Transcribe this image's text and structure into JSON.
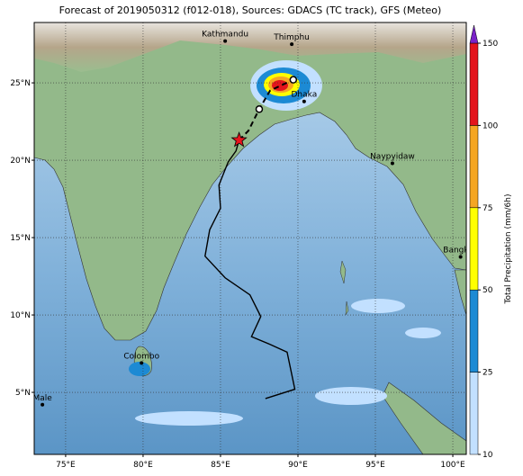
{
  "chart_data": {
    "type": "map",
    "title": "Forecast of 2019050312 (f012-018), Sources: GDACS (TC track), GFS (Meteo)",
    "xlim": [
      72.97,
      100.87
    ],
    "ylim": [
      0.99,
      28.9
    ],
    "xticks": [
      {
        "value": 75,
        "label": "75°E"
      },
      {
        "value": 80,
        "label": "80°E"
      },
      {
        "value": 85,
        "label": "85°E"
      },
      {
        "value": 90,
        "label": "90°E"
      },
      {
        "value": 95,
        "label": "95°E"
      },
      {
        "value": 100,
        "label": "100°E"
      }
    ],
    "yticks": [
      {
        "value": 5,
        "label": "5°N"
      },
      {
        "value": 10,
        "label": "10°N"
      },
      {
        "value": 15,
        "label": "15°N"
      },
      {
        "value": 20,
        "label": "20°N"
      },
      {
        "value": 25,
        "label": "25°N"
      }
    ],
    "grid": true,
    "colorbar": {
      "label": "Total Precipitation (mm/6h)",
      "ticks": [
        10,
        25,
        50,
        75,
        100,
        150
      ],
      "colors": [
        "#c2e0ff",
        "#1c8ad4",
        "#ffff00",
        "#f5a623",
        "#e3141c"
      ],
      "extend_color": "#7a22c8"
    },
    "track": {
      "color": "#000000",
      "x": [
        87.9,
        89.8,
        89.3,
        88.2,
        87.0,
        87.6,
        86.9,
        85.3,
        84.0,
        84.3,
        85.0,
        84.9,
        85.5,
        86.0,
        86.2
      ],
      "y": [
        4.6,
        5.2,
        7.6,
        8.1,
        8.6,
        9.9,
        11.3,
        12.4,
        13.8,
        15.5,
        16.9,
        18.4,
        19.9,
        20.6,
        21.3
      ]
    },
    "forecast_track": {
      "color": "#000000",
      "x": [
        86.2,
        86.8,
        87.5,
        88.2,
        89.7
      ],
      "y": [
        21.3,
        21.9,
        23.3,
        24.5,
        25.2
      ]
    },
    "current_position": {
      "x": 86.2,
      "y": 21.3,
      "color": "#e8141c"
    },
    "cities": [
      {
        "name": "Kathmandu",
        "x": 85.3,
        "y": 27.7
      },
      {
        "name": "Thimphu",
        "x": 89.6,
        "y": 27.5
      },
      {
        "name": "Dhaka",
        "x": 90.4,
        "y": 23.8
      },
      {
        "name": "Naypyidaw",
        "x": 96.1,
        "y": 19.8
      },
      {
        "name": "Bangkok",
        "x": 100.5,
        "y": 13.75
      },
      {
        "name": "Colombo",
        "x": 79.9,
        "y": 6.9
      },
      {
        "name": "Male",
        "x": 73.5,
        "y": 4.2
      }
    ]
  }
}
